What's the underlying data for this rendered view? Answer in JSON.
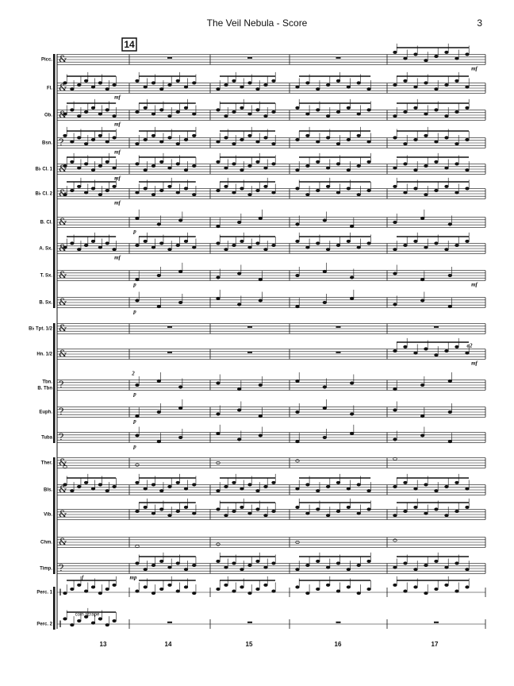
{
  "header": {
    "title": "The Veil Nebula - Score",
    "page_number": "3"
  },
  "rehearsal_mark": "14",
  "staves": [
    {
      "label": [
        "Picc."
      ],
      "markings": [
        "mf"
      ]
    },
    {
      "label": [
        "Fl."
      ],
      "markings": [
        "mf"
      ]
    },
    {
      "label": [
        "Ob."
      ],
      "markings": [
        "mf"
      ]
    },
    {
      "label": [
        "Bsn."
      ],
      "markings": [
        "mf"
      ]
    },
    {
      "label": [
        "B♭ Cl. 1"
      ],
      "markings": [
        "mf"
      ]
    },
    {
      "label": [
        "B♭ Cl. 2"
      ],
      "markings": [
        "mf"
      ]
    },
    {
      "label": [
        "B. Cl."
      ],
      "markings": [
        "p"
      ]
    },
    {
      "label": [
        "A. Sx."
      ],
      "markings": [
        "mf"
      ]
    },
    {
      "label": [
        "T. Sx."
      ],
      "markings": [
        "p",
        "mf"
      ]
    },
    {
      "label": [
        "B. Sx."
      ],
      "markings": [
        "p"
      ]
    },
    {
      "label": [
        "B♭ Tpt. 1/2"
      ],
      "markings": []
    },
    {
      "label": [
        "Hn. 1/2"
      ],
      "markings": [
        "a2",
        "mf"
      ]
    },
    {
      "label": [
        "Tbn.",
        "B. Tbn"
      ],
      "markings": [
        "2",
        "p"
      ]
    },
    {
      "label": [
        "Euph."
      ],
      "markings": [
        "p"
      ]
    },
    {
      "label": [
        "Tuba"
      ],
      "markings": [
        "p"
      ]
    },
    {
      "label": [
        "Ther."
      ],
      "markings": []
    },
    {
      "label": [
        "Bls."
      ],
      "markings": []
    },
    {
      "label": [
        "Vib."
      ],
      "markings": []
    },
    {
      "label": [
        "Chm."
      ],
      "markings": []
    },
    {
      "label": [
        "Timp."
      ],
      "markings": [
        "f",
        "mp"
      ]
    },
    {
      "label": [
        "Perc. 1"
      ],
      "markings": []
    },
    {
      "label": [
        "Perc. 2"
      ],
      "markings": [
        "coin scrape"
      ]
    }
  ],
  "measure_numbers": [
    "13",
    "14",
    "15",
    "16",
    "17"
  ]
}
